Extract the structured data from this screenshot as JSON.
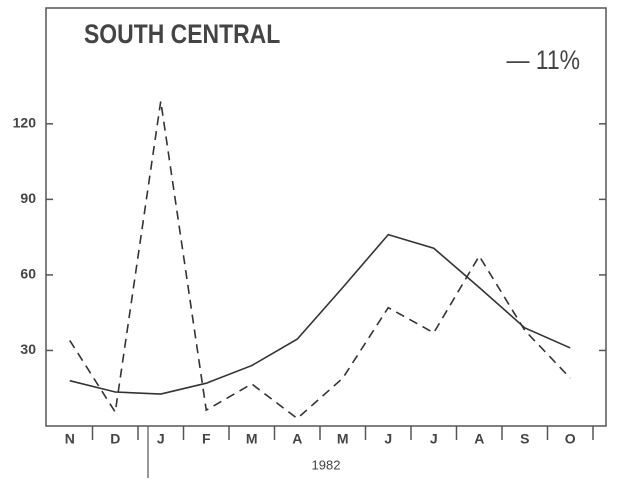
{
  "chart_data": {
    "type": "line",
    "title": "SOUTH CENTRAL",
    "annotation": "— 11%",
    "xlabel": "1982",
    "categories": [
      "N",
      "D",
      "J",
      "F",
      "M",
      "A",
      "M",
      "J",
      "J",
      "A",
      "S",
      "O"
    ],
    "series": [
      {
        "color": "#333333",
        "dashed": false,
        "values": [
          18,
          13.5,
          12.7,
          17,
          24,
          34.5,
          55,
          76,
          70.6,
          55,
          39,
          31
        ]
      },
      {
        "color": "#333333",
        "dashed": true,
        "values": [
          34,
          5.5,
          129,
          6.3,
          16.7,
          3,
          19,
          47,
          37,
          67.5,
          38,
          19
        ]
      }
    ],
    "ylim": [
      0,
      166
    ],
    "yticks": [
      30,
      60,
      90,
      120
    ]
  }
}
